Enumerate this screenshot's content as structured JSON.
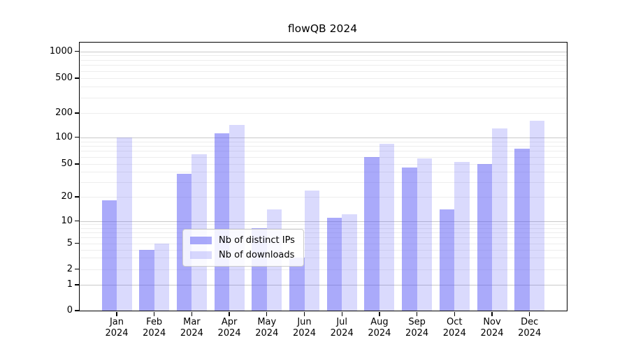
{
  "chart_data": {
    "type": "bar",
    "title": "flowQB 2024",
    "categories": [
      "Jan",
      "Feb",
      "Mar",
      "Apr",
      "May",
      "Jun",
      "Jul",
      "Aug",
      "Sep",
      "Oct",
      "Nov",
      "Dec"
    ],
    "category_sublabel": "2024",
    "series": [
      {
        "name": "Nb of distinct IPs",
        "color": "rgba(85,85,245,0.5)",
        "values": [
          18,
          4,
          38,
          113,
          8,
          3,
          11,
          60,
          45,
          14,
          50,
          75
        ]
      },
      {
        "name": "Nb of downloads",
        "color": "rgba(85,85,245,0.22)",
        "values": [
          100,
          5,
          65,
          142,
          14,
          24,
          12,
          84,
          58,
          53,
          130,
          160
        ]
      }
    ],
    "y_ticks": [
      0,
      1,
      2,
      5,
      10,
      20,
      50,
      100,
      200,
      500,
      1000
    ],
    "y_tick_labels": [
      "0",
      "1",
      "2",
      "5",
      "10",
      "20",
      "50",
      "100",
      "200",
      "500",
      "1000"
    ],
    "y_scale": "symlog",
    "ylim": [
      0,
      1270
    ],
    "xlabel": "",
    "ylabel": "",
    "grid": true,
    "legend_position": "lower center"
  }
}
